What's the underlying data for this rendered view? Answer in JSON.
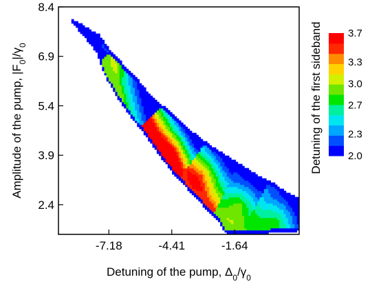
{
  "chart_data": {
    "type": "heatmap",
    "title": "",
    "xlabel_parts": [
      "Detuning of the pump, Δ",
      "0",
      "/γ",
      "0"
    ],
    "ylabel_parts": [
      "Amplitude of the pump, |F",
      "0",
      "|/γ",
      "0"
    ],
    "colorbar_label": "Detuning of the first sideband",
    "xlim": [
      -9.4,
      1.2
    ],
    "ylim": [
      1.5,
      8.4
    ],
    "x_ticks": [
      -7.18,
      -4.41,
      -1.64
    ],
    "x_tick_labels": [
      "-7.18",
      "-4.41",
      "-1.64"
    ],
    "y_ticks": [
      2.4,
      3.9,
      5.4,
      6.9,
      8.4
    ],
    "y_tick_labels": [
      "2.4",
      "3.9",
      "5.4",
      "6.9",
      "8.4"
    ],
    "colorbar": {
      "min": 2.0,
      "max": 3.7,
      "ticks": [
        2.0,
        2.3,
        2.7,
        3.0,
        3.3,
        3.7
      ],
      "tick_labels": [
        "2.0",
        "2.3",
        "2.7",
        "3.0",
        "3.3",
        "3.7"
      ],
      "colors": [
        "#0000ff",
        "#0050ff",
        "#00a6ff",
        "#00e6f0",
        "#00f0a0",
        "#00e600",
        "#6ee600",
        "#d2f000",
        "#ffd200",
        "#ff8c00",
        "#ff2800",
        "#ff0000"
      ]
    },
    "region_upper": [
      [
        -8.7,
        8.0
      ],
      [
        -8.2,
        7.8
      ],
      [
        -7.6,
        7.55
      ],
      [
        -7.2,
        7.15
      ],
      [
        -6.6,
        6.7
      ],
      [
        -5.9,
        6.2
      ],
      [
        -5.4,
        5.75
      ],
      [
        -4.7,
        5.35
      ],
      [
        -4.0,
        4.9
      ],
      [
        -3.3,
        4.5
      ],
      [
        -2.6,
        4.15
      ],
      [
        -1.9,
        3.85
      ],
      [
        -1.2,
        3.55
      ],
      [
        -0.5,
        3.25
      ],
      [
        0.2,
        3.0
      ],
      [
        0.7,
        2.75
      ],
      [
        1.2,
        2.6
      ]
    ],
    "region_lower": [
      [
        -8.8,
        7.95
      ],
      [
        -7.7,
        7.0
      ],
      [
        -7.3,
        6.25
      ],
      [
        -6.8,
        5.65
      ],
      [
        -6.2,
        5.05
      ],
      [
        -5.5,
        4.45
      ],
      [
        -4.9,
        3.85
      ],
      [
        -4.3,
        3.3
      ],
      [
        -3.6,
        2.8
      ],
      [
        -3.0,
        2.35
      ],
      [
        -2.4,
        1.95
      ],
      [
        -2.0,
        1.5
      ],
      [
        -0.7,
        1.5
      ],
      [
        0.2,
        1.55
      ],
      [
        1.2,
        1.6
      ]
    ],
    "bands": [
      {
        "low": [
          -8.6,
          7.6
        ],
        "high": [
          -8.0,
          7.95
        ],
        "hot": [
          -7.0,
          7.4
        ],
        "hotval": 2.0
      },
      {
        "low": [
          -6.6,
          5.85
        ],
        "high": [
          -5.8,
          6.15
        ],
        "hot": [
          -6.6,
          6.8
        ],
        "hotval": 2.85
      },
      {
        "low": [
          -4.6,
          4.1
        ],
        "high": [
          -3.8,
          4.8
        ],
        "hot": [
          -4.4,
          3.95
        ],
        "hotval": 3.7
      },
      {
        "low": [
          -3.0,
          2.8
        ],
        "high": [
          -2.0,
          3.8
        ],
        "hot": [
          -3.1,
          3.3
        ],
        "hotval": 3.45
      },
      {
        "low": [
          -1.8,
          1.9
        ],
        "high": [
          -1.0,
          3.4
        ],
        "hot": [
          -1.4,
          2.4
        ],
        "hotval": 2.95
      },
      {
        "low": [
          -0.4,
          1.65
        ],
        "high": [
          0.8,
          2.7
        ],
        "hot": [
          0.3,
          1.9
        ],
        "hotval": 2.8
      }
    ]
  }
}
